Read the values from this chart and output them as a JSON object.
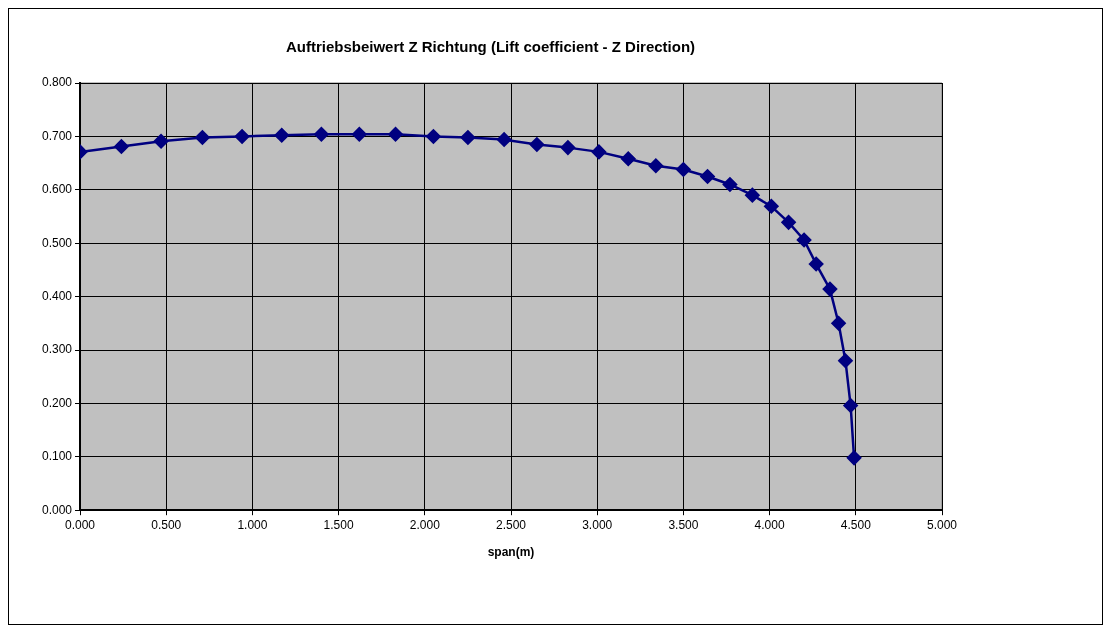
{
  "chart_data": {
    "type": "line",
    "title": "Auftriebsbeiwert Z Richtung (Lift coefficient - Z Direction)",
    "xlabel": "span(m)",
    "x": [
      0,
      0.24,
      0.47,
      0.71,
      0.94,
      1.17,
      1.4,
      1.62,
      1.83,
      2.05,
      2.25,
      2.46,
      2.65,
      2.83,
      3.01,
      3.18,
      3.34,
      3.5,
      3.64,
      3.77,
      3.9,
      4.01,
      4.11,
      4.2,
      4.27,
      4.35,
      4.4,
      4.44,
      4.47,
      4.49
    ],
    "series": [
      {
        "color": "#000080",
        "values": [
          0.671,
          0.681,
          0.691,
          0.698,
          0.7,
          0.702,
          0.704,
          0.704,
          0.704,
          0.7,
          0.698,
          0.694,
          0.685,
          0.679,
          0.671,
          0.658,
          0.645,
          0.638,
          0.625,
          0.61,
          0.59,
          0.569,
          0.539,
          0.506,
          0.461,
          0.414,
          0.35,
          0.28,
          0.196,
          0.098
        ]
      }
    ],
    "xlim": [
      0,
      5
    ],
    "ylim": [
      0,
      0.8
    ],
    "xticks": [
      {
        "value": 0,
        "label": "0.000"
      },
      {
        "value": 0.5,
        "label": "0.500"
      },
      {
        "value": 1,
        "label": "1.000"
      },
      {
        "value": 1.5,
        "label": "1.500"
      },
      {
        "value": 2,
        "label": "2.000"
      },
      {
        "value": 2.5,
        "label": "2.500"
      },
      {
        "value": 3,
        "label": "3.000"
      },
      {
        "value": 3.5,
        "label": "3.500"
      },
      {
        "value": 4,
        "label": "4.000"
      },
      {
        "value": 4.5,
        "label": "4.500"
      },
      {
        "value": 5,
        "label": "5.000"
      }
    ],
    "yticks": [
      {
        "value": 0,
        "label": "0.000"
      },
      {
        "value": 0.1,
        "label": "0.100"
      },
      {
        "value": 0.2,
        "label": "0.200"
      },
      {
        "value": 0.3,
        "label": "0.300"
      },
      {
        "value": 0.4,
        "label": "0.400"
      },
      {
        "value": 0.5,
        "label": "0.500"
      },
      {
        "value": 0.6,
        "label": "0.600"
      },
      {
        "value": 0.7,
        "label": "0.700"
      },
      {
        "value": 0.8,
        "label": "0.800"
      }
    ],
    "grid": true,
    "legend": false,
    "marker": "diamond",
    "line_style": "solid"
  }
}
